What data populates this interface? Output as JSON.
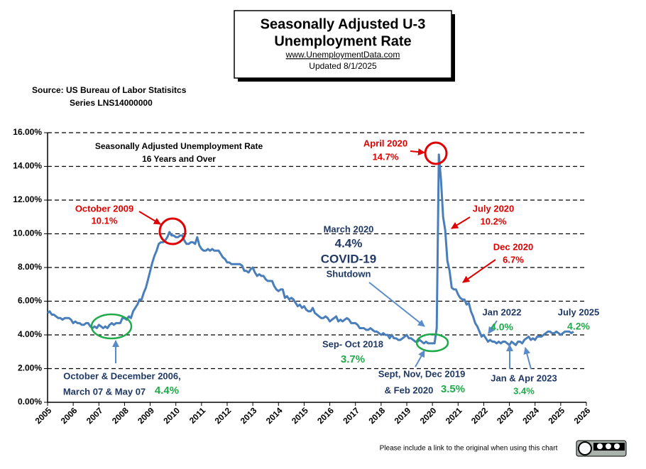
{
  "chart_data": {
    "type": "line",
    "title": [
      "Seasonally Adjusted U-3",
      "Unemployment Rate"
    ],
    "subtitle": "www.UnemploymentData.com",
    "updated": "Updated 8/1/2025",
    "source": [
      "Source:  US  Bureau of Labor Statisitcs",
      "Series LNS14000000"
    ],
    "footer": "Please include a link to the original when using this chart",
    "color": "#4a7ebb",
    "xlim": [
      2005,
      2026
    ],
    "xticks": [
      2005,
      2006,
      2007,
      2008,
      2009,
      2010,
      2011,
      2012,
      2013,
      2014,
      2015,
      2016,
      2017,
      2018,
      2019,
      2020,
      2021,
      2022,
      2023,
      2024,
      2025,
      2026
    ],
    "ylim": [
      0,
      16
    ],
    "yticks": [
      {
        "value": 0,
        "label": "0.00%"
      },
      {
        "value": 2,
        "label": "2.00%"
      },
      {
        "value": 4,
        "label": "4.00%"
      },
      {
        "value": 6,
        "label": "6.00%"
      },
      {
        "value": 8,
        "label": "8.00%"
      },
      {
        "value": 10,
        "label": "10.00%"
      },
      {
        "value": 12,
        "label": "12.00%"
      },
      {
        "value": 14,
        "label": "14.00%"
      },
      {
        "value": 16,
        "label": "16.00%"
      }
    ],
    "grid": true,
    "x": [
      2005,
      2005.083,
      2005.167,
      2005.25,
      2005.333,
      2005.417,
      2005.5,
      2005.583,
      2005.667,
      2005.75,
      2005.833,
      2005.917,
      2006,
      2006.083,
      2006.167,
      2006.25,
      2006.333,
      2006.417,
      2006.5,
      2006.583,
      2006.667,
      2006.75,
      2006.833,
      2006.917,
      2007,
      2007.083,
      2007.167,
      2007.25,
      2007.333,
      2007.417,
      2007.5,
      2007.583,
      2007.667,
      2007.75,
      2007.833,
      2007.917,
      2008,
      2008.083,
      2008.167,
      2008.25,
      2008.333,
      2008.417,
      2008.5,
      2008.583,
      2008.667,
      2008.75,
      2008.833,
      2008.917,
      2009,
      2009.083,
      2009.167,
      2009.25,
      2009.333,
      2009.417,
      2009.5,
      2009.583,
      2009.667,
      2009.75,
      2009.833,
      2009.917,
      2010,
      2010.083,
      2010.167,
      2010.25,
      2010.333,
      2010.417,
      2010.5,
      2010.583,
      2010.667,
      2010.75,
      2010.833,
      2010.917,
      2011,
      2011.083,
      2011.167,
      2011.25,
      2011.333,
      2011.417,
      2011.5,
      2011.583,
      2011.667,
      2011.75,
      2011.833,
      2011.917,
      2012,
      2012.083,
      2012.167,
      2012.25,
      2012.333,
      2012.417,
      2012.5,
      2012.583,
      2012.667,
      2012.75,
      2012.833,
      2012.917,
      2013,
      2013.083,
      2013.167,
      2013.25,
      2013.333,
      2013.417,
      2013.5,
      2013.583,
      2013.667,
      2013.75,
      2013.833,
      2013.917,
      2014,
      2014.083,
      2014.167,
      2014.25,
      2014.333,
      2014.417,
      2014.5,
      2014.583,
      2014.667,
      2014.75,
      2014.833,
      2014.917,
      2015,
      2015.083,
      2015.167,
      2015.25,
      2015.333,
      2015.417,
      2015.5,
      2015.583,
      2015.667,
      2015.75,
      2015.833,
      2015.917,
      2016,
      2016.083,
      2016.167,
      2016.25,
      2016.333,
      2016.417,
      2016.5,
      2016.583,
      2016.667,
      2016.75,
      2016.833,
      2016.917,
      2017,
      2017.083,
      2017.167,
      2017.25,
      2017.333,
      2017.417,
      2017.5,
      2017.583,
      2017.667,
      2017.75,
      2017.833,
      2017.917,
      2018,
      2018.083,
      2018.167,
      2018.25,
      2018.333,
      2018.417,
      2018.5,
      2018.583,
      2018.667,
      2018.75,
      2018.833,
      2018.917,
      2019,
      2019.083,
      2019.167,
      2019.25,
      2019.333,
      2019.417,
      2019.5,
      2019.583,
      2019.667,
      2019.75,
      2019.833,
      2019.917,
      2020,
      2020.083,
      2020.167,
      2020.25,
      2020.333,
      2020.417,
      2020.5,
      2020.583,
      2020.667,
      2020.75,
      2020.833,
      2020.917,
      2021,
      2021.083,
      2021.167,
      2021.25,
      2021.333,
      2021.417,
      2021.5,
      2021.583,
      2021.667,
      2021.75,
      2021.833,
      2021.917,
      2022,
      2022.083,
      2022.167,
      2022.25,
      2022.333,
      2022.417,
      2022.5,
      2022.583,
      2022.667,
      2022.75,
      2022.833,
      2022.917,
      2023,
      2023.083,
      2023.167,
      2023.25,
      2023.333,
      2023.417,
      2023.5,
      2023.583,
      2023.667,
      2023.75,
      2023.833,
      2023.917,
      2024,
      2024.083,
      2024.167,
      2024.25,
      2024.333,
      2024.417,
      2024.5,
      2024.583,
      2024.667,
      2024.75,
      2024.833,
      2024.917,
      2025,
      2025.083,
      2025.167,
      2025.25,
      2025.333,
      2025.417,
      2025.5
    ],
    "values": [
      5.3,
      5.4,
      5.2,
      5.2,
      5.1,
      5.0,
      5.0,
      4.9,
      5.0,
      5.0,
      5.0,
      4.9,
      4.7,
      4.8,
      4.7,
      4.7,
      4.6,
      4.6,
      4.7,
      4.7,
      4.5,
      4.4,
      4.5,
      4.4,
      4.6,
      4.5,
      4.4,
      4.5,
      4.4,
      4.6,
      4.7,
      4.6,
      4.7,
      4.7,
      4.7,
      5.0,
      5.0,
      4.9,
      5.1,
      5.0,
      5.4,
      5.6,
      5.8,
      6.1,
      6.1,
      6.5,
      6.8,
      7.3,
      7.8,
      8.3,
      8.7,
      9.0,
      9.4,
      9.5,
      9.5,
      9.6,
      9.8,
      10.1,
      9.9,
      9.9,
      9.8,
      9.8,
      9.9,
      9.9,
      9.6,
      9.4,
      9.4,
      9.5,
      9.5,
      9.4,
      9.8,
      9.3,
      9.1,
      9.0,
      9.0,
      9.1,
      9.0,
      9.1,
      9.0,
      9.0,
      9.0,
      8.8,
      8.6,
      8.5,
      8.3,
      8.3,
      8.2,
      8.2,
      8.2,
      8.2,
      8.2,
      8.1,
      7.8,
      7.8,
      7.7,
      7.9,
      8.0,
      7.7,
      7.5,
      7.6,
      7.5,
      7.5,
      7.3,
      7.2,
      7.2,
      7.2,
      6.9,
      6.7,
      6.6,
      6.7,
      6.7,
      6.2,
      6.3,
      6.1,
      6.2,
      6.1,
      5.9,
      5.7,
      5.8,
      5.6,
      5.7,
      5.5,
      5.4,
      5.4,
      5.6,
      5.3,
      5.2,
      5.1,
      5.0,
      5.0,
      5.1,
      5.0,
      4.8,
      4.9,
      5.0,
      5.1,
      4.8,
      4.9,
      4.8,
      4.9,
      5.0,
      4.9,
      4.7,
      4.7,
      4.7,
      4.6,
      4.4,
      4.4,
      4.4,
      4.3,
      4.3,
      4.4,
      4.3,
      4.2,
      4.2,
      4.1,
      4.0,
      4.1,
      4.0,
      4.0,
      3.8,
      4.0,
      3.8,
      3.8,
      3.7,
      3.7,
      3.8,
      3.9,
      4.0,
      3.8,
      3.8,
      3.7,
      3.6,
      3.6,
      3.7,
      3.6,
      3.5,
      3.6,
      3.5,
      3.5,
      3.5,
      3.5,
      4.4,
      14.7,
      13.2,
      11.0,
      10.2,
      8.4,
      7.8,
      6.8,
      6.7,
      6.7,
      6.4,
      6.2,
      6.1,
      6.1,
      5.8,
      5.9,
      5.4,
      5.1,
      4.7,
      4.5,
      4.2,
      3.9,
      4.0,
      3.8,
      3.6,
      3.7,
      3.6,
      3.6,
      3.5,
      3.6,
      3.5,
      3.6,
      3.6,
      3.5,
      3.4,
      3.6,
      3.5,
      3.4,
      3.6,
      3.6,
      3.5,
      3.7,
      3.8,
      3.9,
      3.7,
      3.8,
      3.7,
      3.9,
      3.9,
      3.9,
      4.0,
      4.1,
      4.2,
      4.2,
      4.1,
      4.1,
      4.2,
      4.1,
      4.0,
      4.1,
      4.2,
      4.2,
      4.2,
      4.1,
      4.2
    ],
    "annotations": [
      {
        "text": "Seasonally Adjusted Unemployment Rate",
        "color": "#000000"
      },
      {
        "text": "16 Years and Over",
        "color": "#000000"
      },
      {
        "text": "October 2009",
        "color": "#e00000"
      },
      {
        "text": "10.1%",
        "color": "#e00000"
      },
      {
        "text": "April 2020",
        "color": "#e00000"
      },
      {
        "text": "14.7%",
        "color": "#e00000"
      },
      {
        "text": "July 2020",
        "color": "#e00000"
      },
      {
        "text": "10.2%",
        "color": "#e00000"
      },
      {
        "text": "Dec 2020",
        "color": "#e00000"
      },
      {
        "text": "6.7%",
        "color": "#e00000"
      },
      {
        "text": "March 2020",
        "color": "#1f3864"
      },
      {
        "text": "4.4%",
        "color": "#1f3864"
      },
      {
        "text": "COVID-19",
        "color": "#1f3864"
      },
      {
        "text": "Shutdown",
        "color": "#1f3864"
      },
      {
        "text": "October & December 2006,",
        "color": "#1f3864"
      },
      {
        "text": "March 07 & May 07",
        "color": "#1f3864"
      },
      {
        "text": "4.4%",
        "color": "#1faa4a"
      },
      {
        "text": "Sep- Oct 2018",
        "color": "#1f3864"
      },
      {
        "text": "3.7%",
        "color": "#1faa4a"
      },
      {
        "text": "Sept, Nov, Dec 2019",
        "color": "#1f3864"
      },
      {
        "text": "& Feb 2020",
        "color": "#1f3864"
      },
      {
        "text": "3.5%",
        "color": "#1faa4a"
      },
      {
        "text": "Jan 2022",
        "color": "#1f3864"
      },
      {
        "text": "4.0%",
        "color": "#1faa4a"
      },
      {
        "text": "Jan & Apr 2023",
        "color": "#1f3864"
      },
      {
        "text": "3.4%",
        "color": "#1faa4a"
      },
      {
        "text": "July 2025",
        "color": "#1f3864"
      },
      {
        "text": "4.2%",
        "color": "#1faa4a"
      }
    ]
  }
}
